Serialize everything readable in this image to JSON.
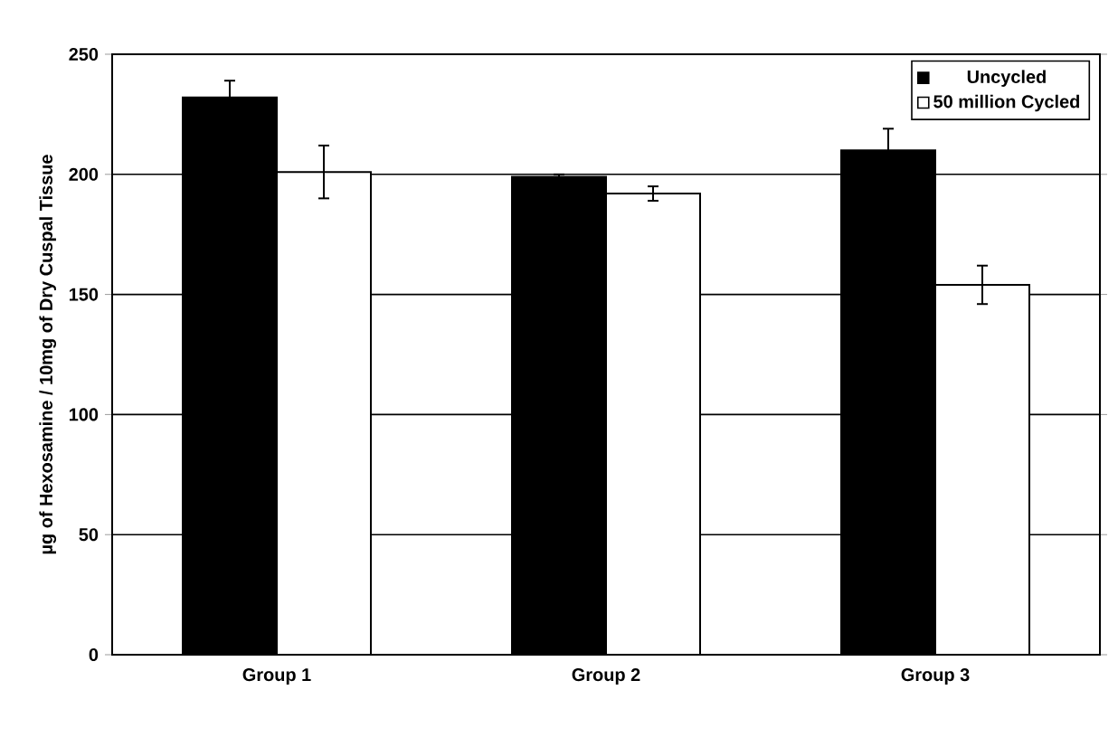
{
  "chart_data": {
    "type": "bar",
    "ylabel": "µg of Hexosamine / 10mg of Dry Cuspal Tissue",
    "categories": [
      "Group 1",
      "Group 2",
      "Group 3"
    ],
    "series": [
      {
        "name": "Uncycled",
        "color": "#000000",
        "values": [
          232,
          199,
          210
        ],
        "errors": [
          7,
          1,
          9
        ]
      },
      {
        "name": "50 million Cycled",
        "color": "#ffffff",
        "values": [
          201,
          192,
          154
        ],
        "errors": [
          11,
          3,
          8
        ]
      }
    ],
    "ylim": [
      0,
      250
    ],
    "yticks": [
      0,
      50,
      100,
      150,
      200,
      250
    ],
    "grid": "y",
    "legend": "top right"
  }
}
